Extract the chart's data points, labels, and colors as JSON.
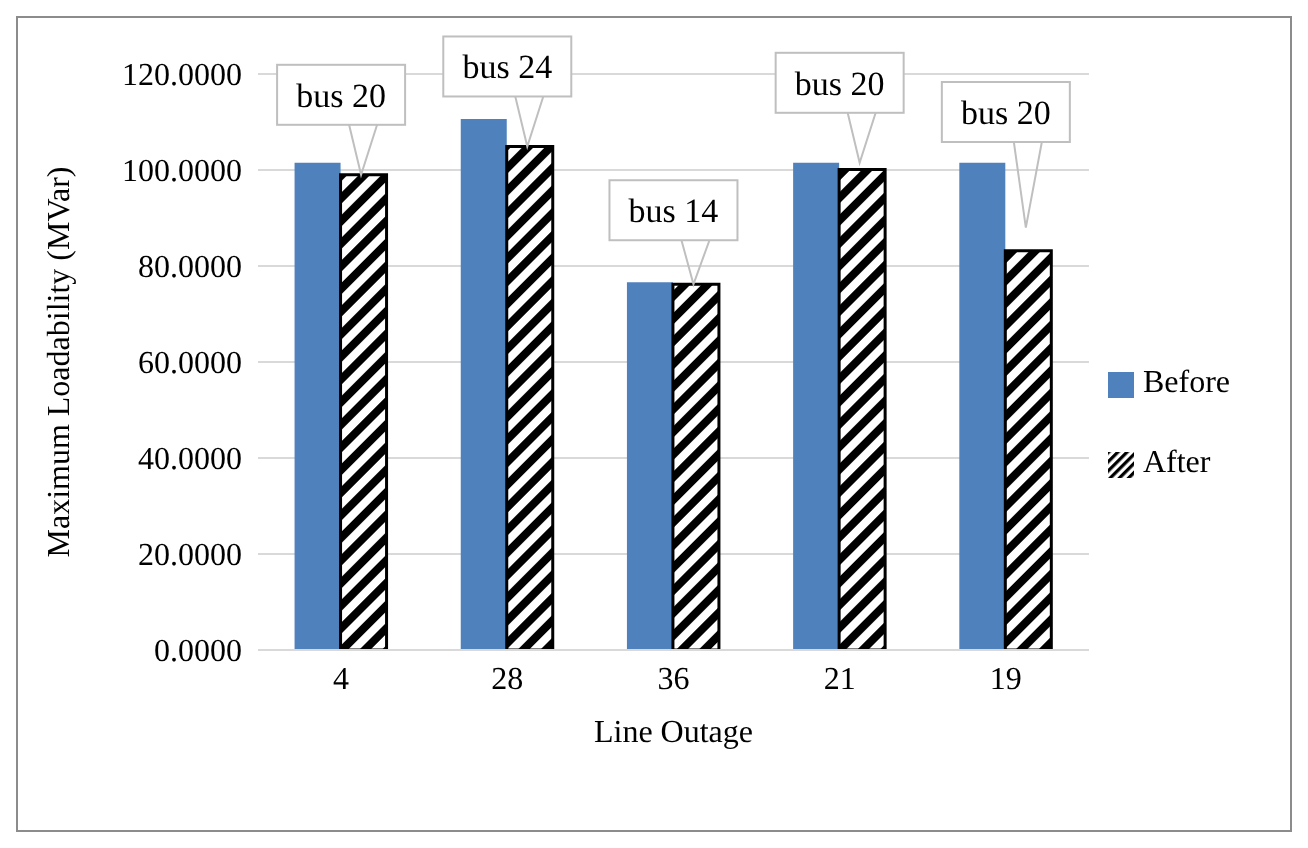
{
  "chart_data": {
    "type": "bar",
    "xlabel": "Line Outage",
    "ylabel": "Maximum Loadability (MVar)",
    "categories": [
      "4",
      "28",
      "36",
      "21",
      "19"
    ],
    "series": [
      {
        "name": "Before",
        "color": "#4f81bd",
        "values": [
          101.5,
          110.6,
          76.6,
          101.5,
          101.5
        ]
      },
      {
        "name": "After",
        "color": "#000000",
        "values": [
          99.0,
          104.9,
          76.2,
          100.1,
          83.2
        ]
      }
    ],
    "ylim": [
      0,
      120
    ],
    "yticks": [
      {
        "value": 0,
        "label": "0.0000"
      },
      {
        "value": 20,
        "label": "20.0000"
      },
      {
        "value": 40,
        "label": "40.0000"
      },
      {
        "value": 60,
        "label": "60.0000"
      },
      {
        "value": 80,
        "label": "80.0000"
      },
      {
        "value": 100,
        "label": "100.0000"
      },
      {
        "value": 120,
        "label": "120.0000"
      }
    ],
    "grid": "y",
    "legend": "right",
    "annotations": [
      {
        "text": "bus 20",
        "x": "4",
        "y": 99.0
      },
      {
        "text": "bus 24",
        "x": "28",
        "y": 104.9
      },
      {
        "text": "bus 14",
        "x": "36",
        "y": 76.2
      },
      {
        "text": "bus 20",
        "x": "21",
        "y": 101.5
      },
      {
        "text": "bus 20",
        "x": "19",
        "y": 88
      }
    ]
  }
}
